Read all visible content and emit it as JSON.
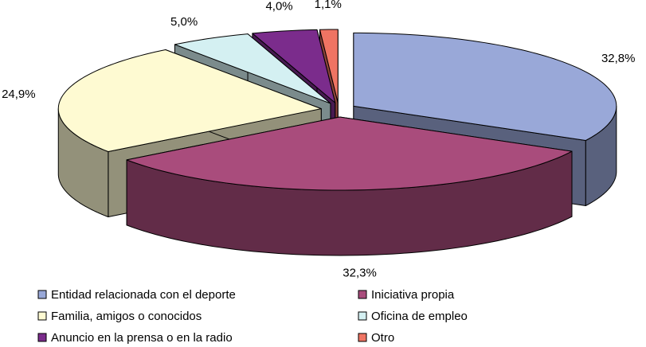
{
  "chart_data": {
    "type": "pie",
    "three_d": true,
    "exploded": true,
    "categories": [
      "Entidad relacionada con el deporte",
      "Iniciativa propia",
      "Familia, amigos o conocidos",
      "Oficina de empleo",
      "Anuncio en la prensa o en la radio",
      "Otro"
    ],
    "values": [
      32.8,
      32.3,
      24.9,
      5.0,
      4.0,
      1.1
    ],
    "value_labels": [
      "32,8%",
      "32,3%",
      "24,9%",
      "5,0%",
      "4,0%",
      "1,1%"
    ],
    "colors": [
      "#99a8d8",
      "#a94c7c",
      "#fefad2",
      "#d4f0f2",
      "#7b2c8c",
      "#ef7463"
    ],
    "legend": "bottom"
  }
}
